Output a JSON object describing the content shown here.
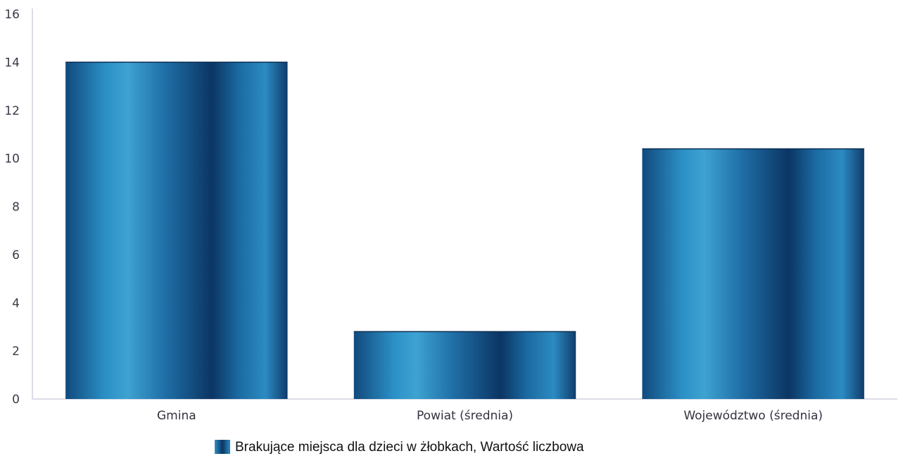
{
  "chart_data": {
    "type": "bar",
    "categories": [
      "Gmina",
      "Powiat (średnia)",
      "Województwo (średnia)"
    ],
    "series": [
      {
        "name": "Brakujące miejsca dla dzieci w żłobkach, Wartość liczbowa",
        "values": [
          14,
          2.8,
          10.4
        ]
      }
    ],
    "yticks": [
      "0",
      "2",
      "4",
      "6",
      "8",
      "10",
      "12",
      "14",
      "16"
    ],
    "ylim": [
      0,
      16
    ],
    "grid": false,
    "legend_position": "bottom-center",
    "colors": {
      "bar_dark": "#0e3f6e",
      "bar_light": "#2a8ec4",
      "axis": "#b9b9cf"
    }
  }
}
